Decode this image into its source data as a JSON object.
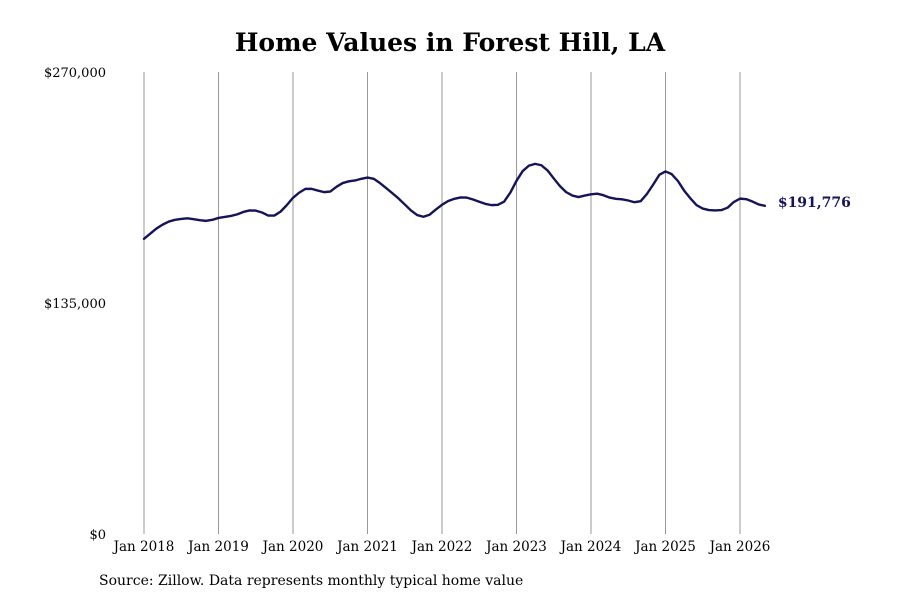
{
  "chart_data": {
    "type": "line",
    "title": "Home Values in Forest Hill, LA",
    "xlabel": "",
    "ylabel": "",
    "ylim": [
      0,
      270000
    ],
    "y_ticks": [
      0,
      135000,
      270000
    ],
    "y_tick_labels": [
      "$0",
      "$135,000",
      "$270,000"
    ],
    "x_ticks": [
      2018,
      2019,
      2020,
      2021,
      2022,
      2023,
      2024,
      2025,
      2026
    ],
    "x_tick_labels": [
      "Jan 2018",
      "Jan 2019",
      "Jan 2020",
      "Jan 2021",
      "Jan 2022",
      "Jan 2023",
      "Jan 2024",
      "Jan 2025",
      "Jan 2026"
    ],
    "grid": "vertical",
    "line_color": "#141459",
    "grid_color": "#999999",
    "last_value_label": "$191,776",
    "series": [
      {
        "points": [
          [
            "2018-01",
            172500
          ],
          [
            "2018-02",
            175500
          ],
          [
            "2018-03",
            178500
          ],
          [
            "2018-04",
            180800
          ],
          [
            "2018-05",
            182600
          ],
          [
            "2018-06",
            183600
          ],
          [
            "2018-07",
            184100
          ],
          [
            "2018-08",
            184500
          ],
          [
            "2018-09",
            184000
          ],
          [
            "2018-10",
            183400
          ],
          [
            "2018-11",
            183000
          ],
          [
            "2018-12",
            183600
          ],
          [
            "2019-01",
            184700
          ],
          [
            "2019-02",
            185300
          ],
          [
            "2019-03",
            185900
          ],
          [
            "2019-04",
            186800
          ],
          [
            "2019-05",
            188200
          ],
          [
            "2019-06",
            189100
          ],
          [
            "2019-07",
            189000
          ],
          [
            "2019-08",
            187900
          ],
          [
            "2019-09",
            186100
          ],
          [
            "2019-10",
            186100
          ],
          [
            "2019-11",
            188400
          ],
          [
            "2019-12",
            192200
          ],
          [
            "2020-01",
            196500
          ],
          [
            "2020-02",
            199500
          ],
          [
            "2020-03",
            201700
          ],
          [
            "2020-04",
            201700
          ],
          [
            "2020-05",
            200700
          ],
          [
            "2020-06",
            199800
          ],
          [
            "2020-07",
            200100
          ],
          [
            "2020-08",
            202900
          ],
          [
            "2020-09",
            205100
          ],
          [
            "2020-10",
            206100
          ],
          [
            "2020-11",
            206600
          ],
          [
            "2020-12",
            207600
          ],
          [
            "2021-01",
            208300
          ],
          [
            "2021-02",
            207600
          ],
          [
            "2021-03",
            205100
          ],
          [
            "2021-04",
            202200
          ],
          [
            "2021-05",
            199200
          ],
          [
            "2021-06",
            196100
          ],
          [
            "2021-07",
            192600
          ],
          [
            "2021-08",
            189100
          ],
          [
            "2021-09",
            186400
          ],
          [
            "2021-10",
            185400
          ],
          [
            "2021-11",
            186600
          ],
          [
            "2021-12",
            189600
          ],
          [
            "2022-01",
            192400
          ],
          [
            "2022-02",
            194600
          ],
          [
            "2022-03",
            195900
          ],
          [
            "2022-04",
            196700
          ],
          [
            "2022-05",
            196600
          ],
          [
            "2022-06",
            195500
          ],
          [
            "2022-07",
            194200
          ],
          [
            "2022-08",
            192900
          ],
          [
            "2022-09",
            192200
          ],
          [
            "2022-10",
            192400
          ],
          [
            "2022-11",
            194200
          ],
          [
            "2022-12",
            199500
          ],
          [
            "2023-01",
            206400
          ],
          [
            "2023-02",
            212100
          ],
          [
            "2023-03",
            215300
          ],
          [
            "2023-04",
            216300
          ],
          [
            "2023-05",
            215500
          ],
          [
            "2023-06",
            212500
          ],
          [
            "2023-07",
            207800
          ],
          [
            "2023-08",
            203300
          ],
          [
            "2023-09",
            199800
          ],
          [
            "2023-10",
            197800
          ],
          [
            "2023-11",
            196900
          ],
          [
            "2023-12",
            197800
          ],
          [
            "2024-01",
            198500
          ],
          [
            "2024-02",
            198900
          ],
          [
            "2024-03",
            198000
          ],
          [
            "2024-04",
            196600
          ],
          [
            "2024-05",
            195900
          ],
          [
            "2024-06",
            195600
          ],
          [
            "2024-07",
            194900
          ],
          [
            "2024-08",
            193900
          ],
          [
            "2024-09",
            194500
          ],
          [
            "2024-10",
            198700
          ],
          [
            "2024-11",
            204100
          ],
          [
            "2024-12",
            209900
          ],
          [
            "2025-01",
            211900
          ],
          [
            "2025-02",
            210300
          ],
          [
            "2025-03",
            206300
          ],
          [
            "2025-04",
            200700
          ],
          [
            "2025-05",
            196200
          ],
          [
            "2025-06",
            192200
          ],
          [
            "2025-07",
            190200
          ],
          [
            "2025-08",
            189300
          ],
          [
            "2025-09",
            189100
          ],
          [
            "2025-10",
            189300
          ],
          [
            "2025-11",
            190700
          ],
          [
            "2025-12",
            194000
          ],
          [
            "2026-01",
            196000
          ],
          [
            "2026-02",
            195700
          ],
          [
            "2026-03",
            194300
          ],
          [
            "2026-04",
            192600
          ],
          [
            "2026-05",
            191776
          ]
        ]
      }
    ]
  },
  "footer": {
    "source": "Source: Zillow. Data represents monthly typical home value"
  }
}
